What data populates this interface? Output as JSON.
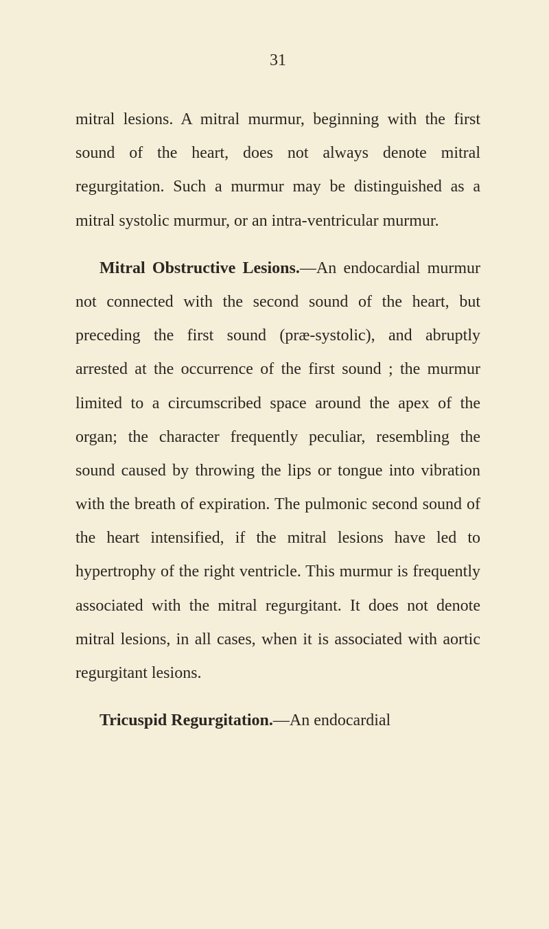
{
  "page_number": "31",
  "paragraph1": "mitral lesions. A mitral murmur, beginning with the first sound of the heart, does not always denote mitral regurgitation. Such a murmur may be distinguished as a mitral systolic murmur, or an intra-ventricular murmur.",
  "heading1": "Mitral Obstructive Lesions.",
  "paragraph2": "—An endocardial murmur not connected with the second sound of the heart, but preceding the first sound (præ-systolic), and abruptly arrested at the occurrence of the first sound ; the murmur limited to a circumscribed space around the apex of the organ; the character frequently peculiar, resembling the sound caused by throwing the lips or tongue into vibration with the breath of expiration. The pulmonic second sound of the heart intensified, if the mitral lesions have led to hypertrophy of the right ventricle. This murmur is frequently associated with the mitral regurgitant. It does not denote mitral lesions, in all cases, when it is associated with aortic regurgitant lesions.",
  "heading2": "Tricuspid Regurgitation.",
  "paragraph3": "—An endocardial"
}
